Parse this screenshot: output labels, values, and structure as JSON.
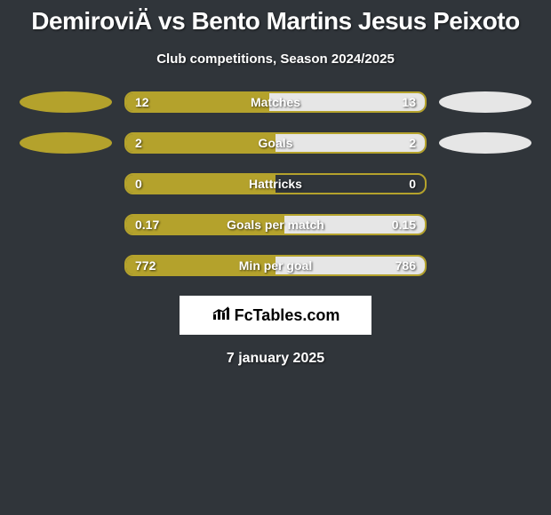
{
  "title": "DemiroviÄ vs Bento Martins Jesus Peixoto",
  "subtitle": "Club competitions, Season 2024/2025",
  "date": "7 january 2025",
  "brand": "FcTables.com",
  "colors": {
    "left_accent": "#b4a22c",
    "right_accent": "#e6e6e6",
    "background": "#30353a",
    "border": "#b4a22c"
  },
  "stats": [
    {
      "label": "Matches",
      "left_value": "12",
      "right_value": "13",
      "left_pct": 48,
      "right_pct": 52,
      "show_ellipse": true
    },
    {
      "label": "Goals",
      "left_value": "2",
      "right_value": "2",
      "left_pct": 50,
      "right_pct": 50,
      "show_ellipse": true
    },
    {
      "label": "Hattricks",
      "left_value": "0",
      "right_value": "0",
      "left_pct": 50,
      "right_pct": 0,
      "show_ellipse": false
    },
    {
      "label": "Goals per match",
      "left_value": "0.17",
      "right_value": "0.15",
      "left_pct": 53,
      "right_pct": 47,
      "show_ellipse": false
    },
    {
      "label": "Min per goal",
      "left_value": "772",
      "right_value": "786",
      "left_pct": 50,
      "right_pct": 50,
      "show_ellipse": false
    }
  ]
}
